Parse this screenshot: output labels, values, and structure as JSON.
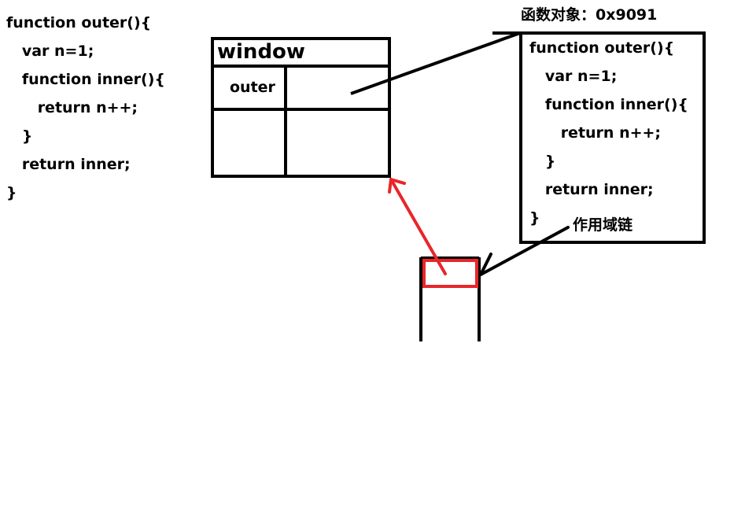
{
  "left_code": [
    "function outer(){",
    "   var n=1;",
    "   function inner(){",
    "      return n++;",
    "   }",
    "   return inner;",
    "}"
  ],
  "window_box": {
    "title": "window",
    "cell_label": "outer"
  },
  "function_object": {
    "caption": "函数对象：0x9091",
    "code": [
      "function outer(){",
      "   var n=1;",
      "   function inner(){",
      "      return n++;",
      "   }",
      "   return inner;",
      "}"
    ]
  },
  "scope_chain_label": "作用域链",
  "colors": {
    "ink": "#000000",
    "highlight": "#e8262b",
    "background": "#ffffff"
  }
}
